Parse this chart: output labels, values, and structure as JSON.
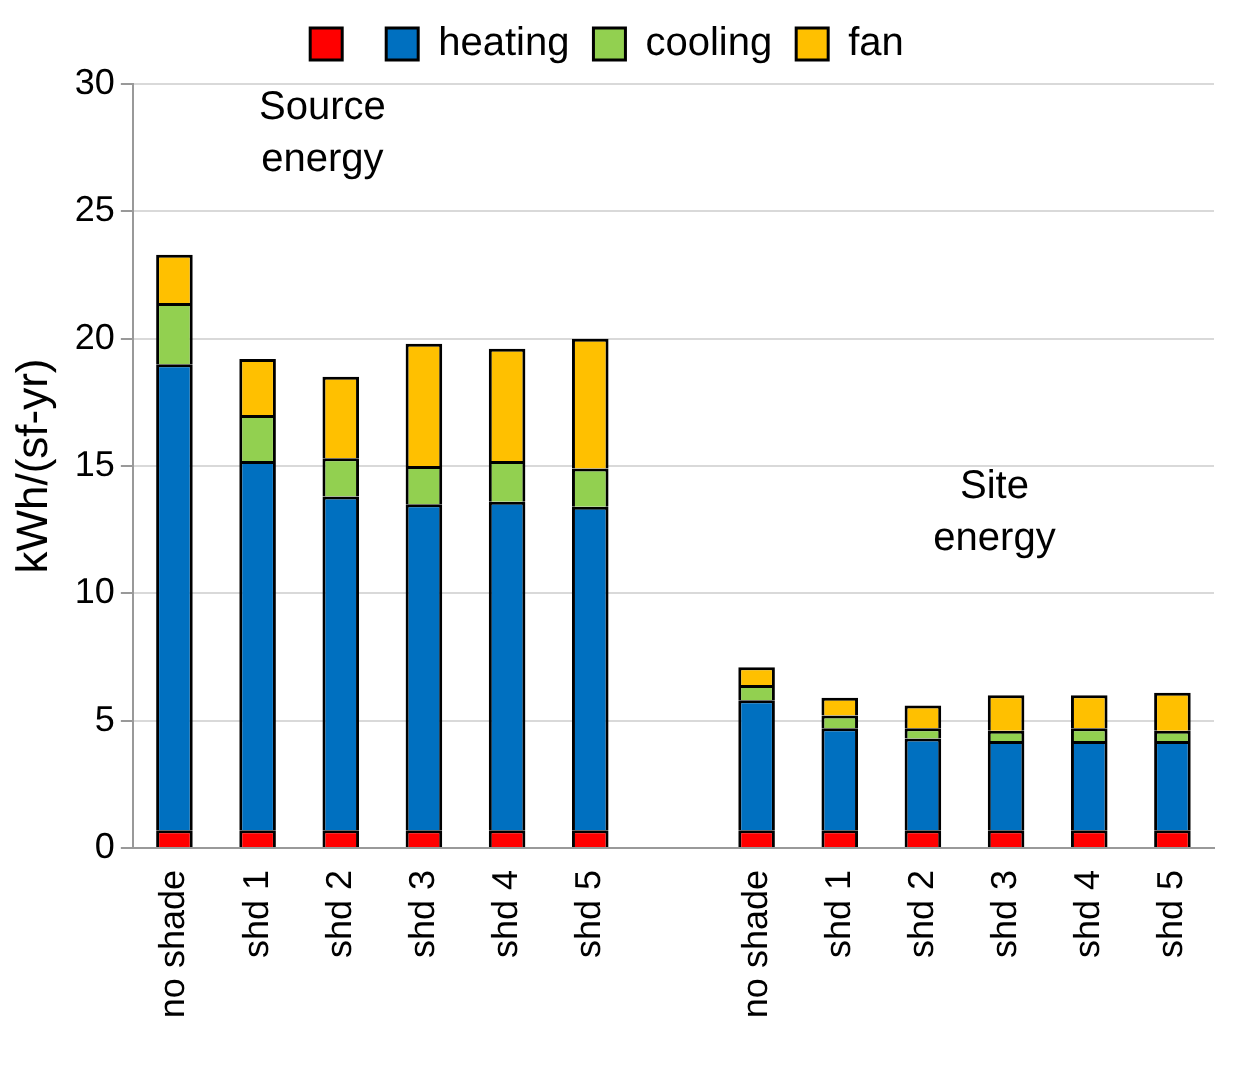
{
  "chart_data": {
    "type": "bar",
    "stacked": true,
    "ylabel": "kWh/(sf-yr)",
    "categories": [
      "no shade",
      "shd 1",
      "shd 2",
      "shd 3",
      "shd 4",
      "shd 5",
      null,
      "no shade",
      "shd 1",
      "shd 2",
      "shd 3",
      "shd 4",
      "shd 5"
    ],
    "series": [
      {
        "color": "#ff0000",
        "values": [
          0.7,
          0.7,
          0.7,
          0.7,
          0.7,
          0.7,
          null,
          0.7,
          0.7,
          0.7,
          0.7,
          0.7,
          0.7
        ]
      },
      {
        "name": "heating",
        "color": "#0070c0",
        "values": [
          18.3,
          14.5,
          13.1,
          12.8,
          12.9,
          12.7,
          null,
          5.1,
          4.0,
          3.6,
          3.5,
          3.5,
          3.5
        ]
      },
      {
        "name": "cooling",
        "color": "#92d050",
        "values": [
          2.4,
          1.8,
          1.5,
          1.5,
          1.6,
          1.5,
          null,
          0.6,
          0.5,
          0.4,
          0.4,
          0.5,
          0.4
        ]
      },
      {
        "name": "fan",
        "color": "#ffc000",
        "values": [
          1.9,
          2.2,
          3.2,
          4.8,
          4.4,
          5.1,
          null,
          0.7,
          0.7,
          0.9,
          1.4,
          1.3,
          1.5
        ]
      }
    ],
    "ylim": [
      0,
      30
    ],
    "yticks": [
      0,
      5,
      10,
      15,
      20,
      25,
      30
    ],
    "grid": "y",
    "legend": "top",
    "annotations": [
      "Source energy",
      "Site energy"
    ]
  }
}
